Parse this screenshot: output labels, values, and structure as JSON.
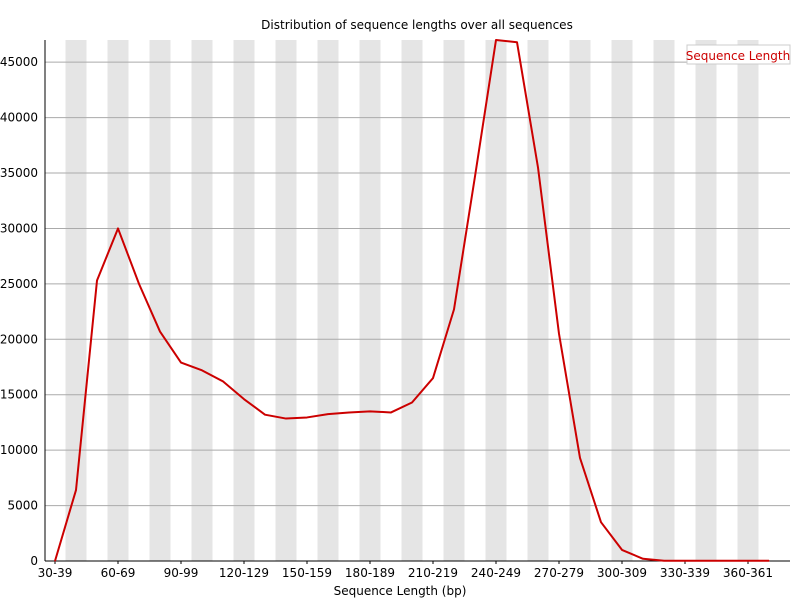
{
  "chart_data": {
    "type": "line",
    "title": "Distribution of sequence lengths over all sequences",
    "xlabel": "Sequence Length (bp)",
    "ylabel": "",
    "ylim": [
      0,
      47000
    ],
    "yticks": [
      0,
      5000,
      10000,
      15000,
      20000,
      25000,
      30000,
      35000,
      40000,
      45000
    ],
    "x_tick_labels": [
      "30-39",
      "60-69",
      "90-99",
      "120-129",
      "150-159",
      "180-189",
      "210-219",
      "240-249",
      "270-279",
      "300-309",
      "330-339",
      "360-361"
    ],
    "grid": true,
    "legend_position": "top-right",
    "colors": {
      "series": "#cc0000",
      "band": "#e5e5e5",
      "grid": "#aaaaaa",
      "axis": "#000000"
    },
    "series": [
      {
        "name": "Sequence Length",
        "values": [
          0,
          6400,
          25300,
          30000,
          25000,
          20700,
          17900,
          17200,
          16200,
          14600,
          13200,
          12850,
          12950,
          13250,
          13400,
          13500,
          13400,
          14300,
          16500,
          22700,
          34700,
          47000,
          46800,
          35500,
          20500,
          9300,
          3500,
          1000,
          200,
          20,
          20,
          20,
          20,
          20,
          20
        ]
      }
    ]
  }
}
